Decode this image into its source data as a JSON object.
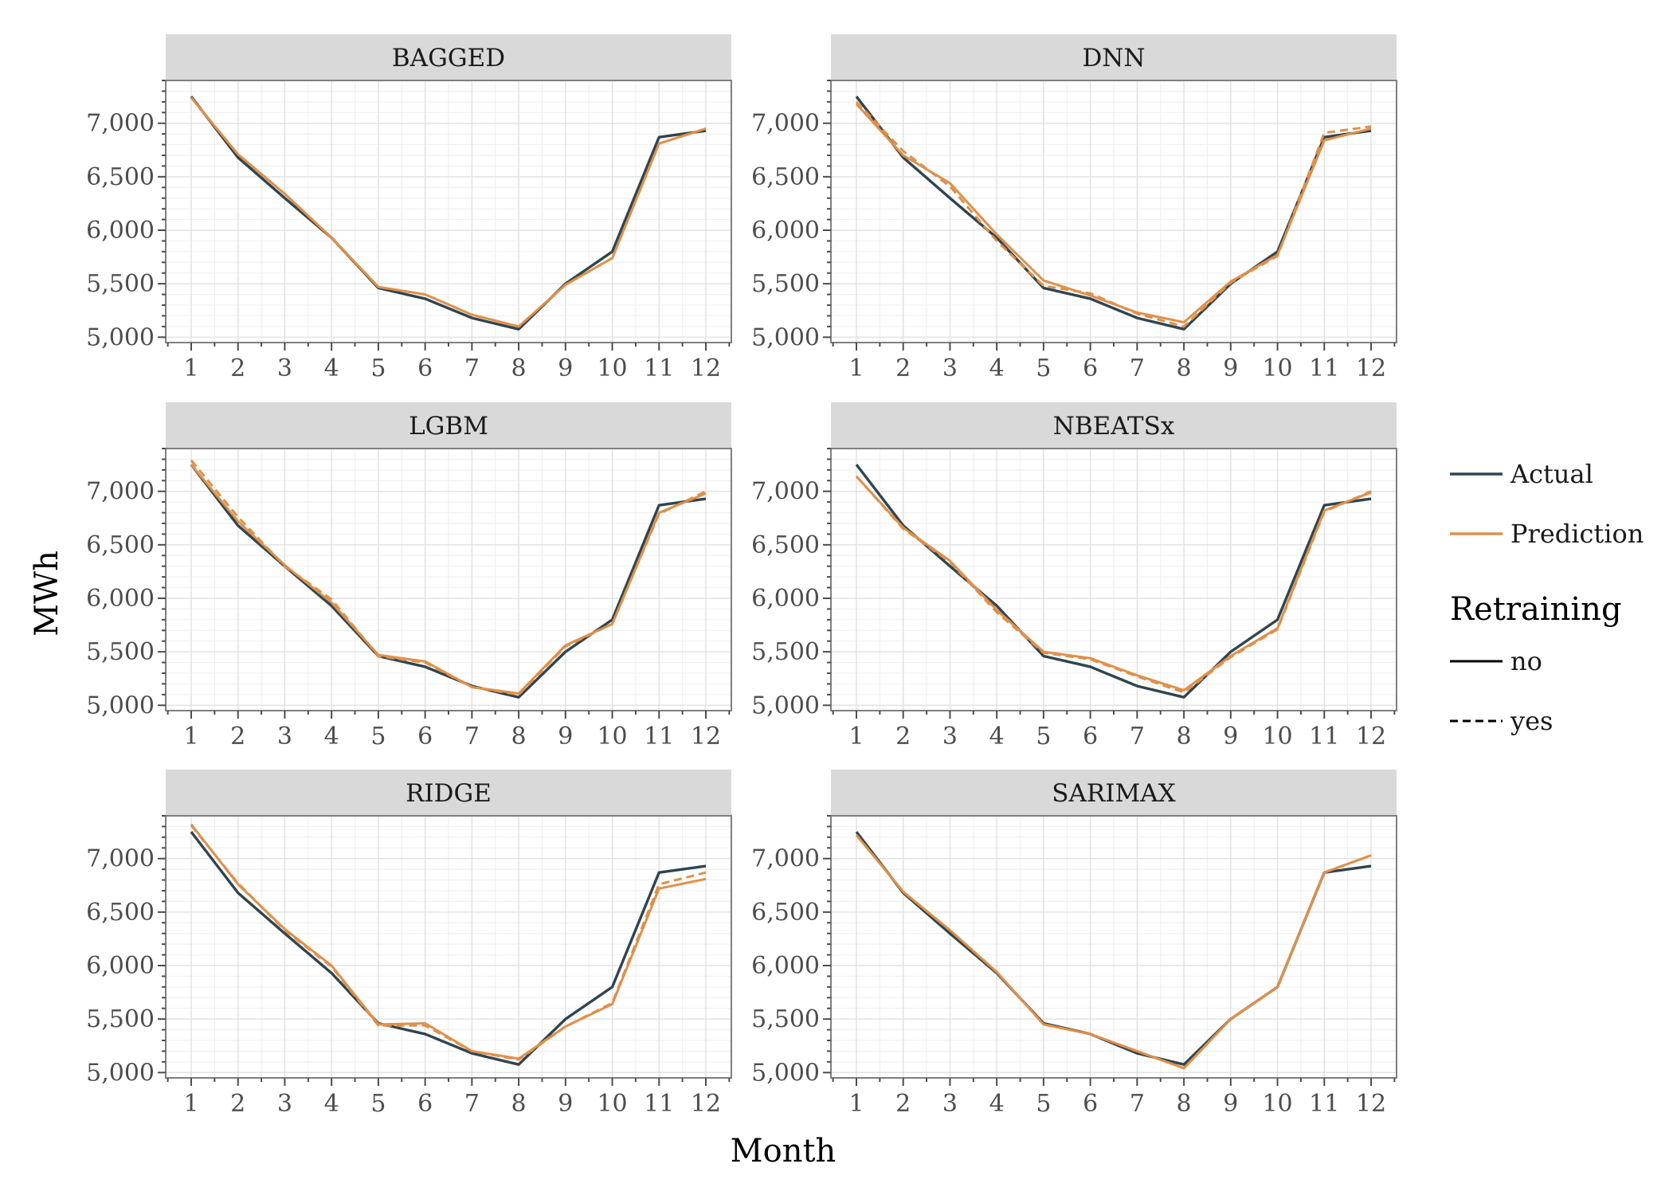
{
  "chart_data": {
    "type": "line",
    "xlabel": "Month",
    "ylabel": "MWh",
    "x": [
      1,
      2,
      3,
      4,
      5,
      6,
      7,
      8,
      9,
      10,
      11,
      12
    ],
    "x_tick_labels": [
      "1",
      "2",
      "3",
      "4",
      "5",
      "6",
      "7",
      "8",
      "9",
      "10",
      "11",
      "12"
    ],
    "ylim": [
      4950,
      7400
    ],
    "y_ticks": [
      5000,
      5500,
      6000,
      6500,
      7000
    ],
    "y_tick_labels": [
      "5,000",
      "5,500",
      "6,000",
      "6,500",
      "7,000"
    ],
    "grid": true,
    "legend": {
      "placement": "right",
      "color_entries": [
        {
          "label": "Actual",
          "color": "#2f4550"
        },
        {
          "label": "Prediction",
          "color": "#e0904a"
        }
      ],
      "linetype_title": "Retraining",
      "linetype_entries": [
        {
          "label": "no",
          "dash": "solid"
        },
        {
          "label": "yes",
          "dash": "dashed"
        }
      ]
    },
    "actual": [
      7250,
      6680,
      6300,
      5930,
      5460,
      5360,
      5180,
      5075,
      5500,
      5800,
      6870,
      6930
    ],
    "panels": [
      {
        "title": "BAGGED",
        "prediction_no": [
          7240,
          6710,
          6340,
          5930,
          5470,
          5400,
          5210,
          5100,
          5490,
          5740,
          6810,
          6950
        ],
        "prediction_yes": [
          7240,
          6710,
          6340,
          5930,
          5470,
          5400,
          5210,
          5100,
          5490,
          5740,
          6810,
          6950
        ]
      },
      {
        "title": "DNN",
        "prediction_no": [
          7180,
          6700,
          6440,
          5960,
          5530,
          5390,
          5230,
          5140,
          5520,
          5770,
          6840,
          6950
        ],
        "prediction_yes": [
          7200,
          6740,
          6410,
          5900,
          5480,
          5410,
          5220,
          5100,
          5510,
          5760,
          6910,
          6970
        ]
      },
      {
        "title": "LGBM",
        "prediction_no": [
          7250,
          6720,
          6310,
          5960,
          5470,
          5410,
          5170,
          5110,
          5560,
          5760,
          6800,
          6980
        ],
        "prediction_yes": [
          7290,
          6760,
          6300,
          5990,
          5460,
          5400,
          5170,
          5100,
          5550,
          5760,
          6790,
          7000
        ]
      },
      {
        "title": "NBEATSx",
        "prediction_no": [
          7140,
          6660,
          6350,
          5890,
          5500,
          5440,
          5280,
          5140,
          5460,
          5720,
          6820,
          6990
        ],
        "prediction_yes": [
          7140,
          6650,
          6340,
          5870,
          5490,
          5430,
          5270,
          5120,
          5450,
          5710,
          6810,
          7000
        ]
      },
      {
        "title": "RIDGE",
        "prediction_no": [
          7320,
          6760,
          6340,
          6000,
          5450,
          5460,
          5200,
          5130,
          5430,
          5640,
          6720,
          6810
        ],
        "prediction_yes": [
          7310,
          6770,
          6330,
          5990,
          5440,
          5440,
          5200,
          5120,
          5430,
          5650,
          6760,
          6870
        ]
      },
      {
        "title": "SARIMAX",
        "prediction_no": [
          7220,
          6690,
          6330,
          5940,
          5450,
          5360,
          5200,
          5040,
          5500,
          5800,
          6870,
          7030
        ],
        "prediction_yes": [
          7220,
          6690,
          6330,
          5940,
          5450,
          5360,
          5200,
          5040,
          5500,
          5800,
          6870,
          7030
        ]
      }
    ]
  }
}
